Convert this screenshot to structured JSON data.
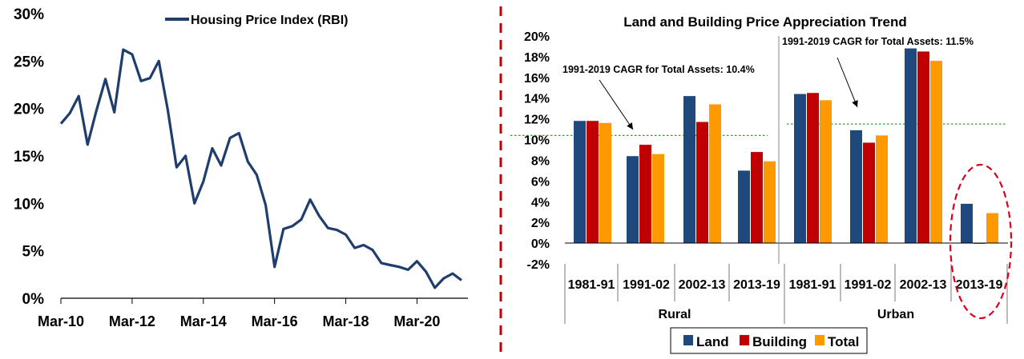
{
  "chart_data": [
    {
      "type": "line",
      "legend": "Housing Price Index (RBI)",
      "legend_position": "top-center",
      "grid": false,
      "ylim": [
        0,
        30
      ],
      "y_ticks": [
        "0%",
        "5%",
        "10%",
        "15%",
        "20%",
        "25%",
        "30%"
      ],
      "x_ticks": [
        "Mar-10",
        "Mar-12",
        "Mar-14",
        "Mar-16",
        "Mar-18",
        "Mar-20"
      ],
      "color": "#1f3d6d",
      "series": [
        {
          "name": "Housing Price Index (RBI)",
          "x": [
            "Mar-10",
            "Jun-10",
            "Sep-10",
            "Dec-10",
            "Mar-11",
            "Jun-11",
            "Sep-11",
            "Dec-11",
            "Mar-12",
            "Jun-12",
            "Sep-12",
            "Dec-12",
            "Mar-13",
            "Jun-13",
            "Sep-13",
            "Dec-13",
            "Mar-14",
            "Jun-14",
            "Sep-14",
            "Dec-14",
            "Mar-15",
            "Jun-15",
            "Sep-15",
            "Dec-15",
            "Mar-16",
            "Jun-16",
            "Sep-16",
            "Dec-16",
            "Mar-17",
            "Jun-17",
            "Sep-17",
            "Dec-17",
            "Mar-18",
            "Jun-18",
            "Sep-18",
            "Dec-18",
            "Mar-19",
            "Jun-19",
            "Sep-19",
            "Dec-19",
            "Mar-20",
            "Jun-20",
            "Sep-20",
            "Dec-20",
            "Mar-21",
            "Jun-21"
          ],
          "values": [
            18.4,
            19.5,
            21.3,
            16.2,
            19.8,
            23.1,
            19.6,
            26.2,
            25.7,
            22.9,
            23.2,
            25.0,
            19.9,
            13.8,
            15.0,
            10.0,
            12.3,
            15.8,
            14.0,
            16.9,
            17.4,
            14.4,
            13.0,
            9.8,
            3.3,
            7.3,
            7.6,
            8.3,
            10.4,
            8.7,
            7.4,
            7.2,
            6.7,
            5.3,
            5.6,
            5.1,
            3.7,
            3.5,
            3.3,
            3.0,
            3.9,
            2.8,
            1.1,
            2.1,
            2.6,
            1.9
          ]
        }
      ]
    },
    {
      "type": "bar",
      "title": "Land and Building Price Appreciation Trend",
      "ylim": [
        -2,
        20
      ],
      "y_ticks": [
        "-2%",
        "0%",
        "2%",
        "4%",
        "6%",
        "8%",
        "10%",
        "12%",
        "14%",
        "16%",
        "18%",
        "20%"
      ],
      "groups": [
        "Rural",
        "Urban"
      ],
      "categories": [
        "1981-91",
        "1991-02",
        "2002-13",
        "2013-19",
        "1981-91",
        "1991-02",
        "2002-13",
        "2013-19"
      ],
      "legend_position": "bottom-center",
      "series": [
        {
          "name": "Land",
          "color": "#1f497d",
          "values": [
            11.8,
            8.4,
            14.2,
            7.0,
            14.4,
            10.9,
            18.8,
            3.8
          ]
        },
        {
          "name": "Building",
          "color": "#c00000",
          "values": [
            11.8,
            9.5,
            11.7,
            8.8,
            14.5,
            9.7,
            18.5,
            0.0
          ]
        },
        {
          "name": "Total",
          "color": "#ff9900",
          "values": [
            11.6,
            8.6,
            13.4,
            7.9,
            13.8,
            10.4,
            17.6,
            2.9
          ]
        }
      ],
      "cagr_lines": [
        {
          "group": "Rural",
          "value": 10.4,
          "label": "1991-2019 CAGR for Total Assets: 10.4%"
        },
        {
          "group": "Urban",
          "value": 11.5,
          "label": "1991-2019 CAGR for Total Assets: 11.5%"
        }
      ],
      "highlight": {
        "category_index": 7,
        "style": "red dashed ellipse"
      }
    }
  ]
}
